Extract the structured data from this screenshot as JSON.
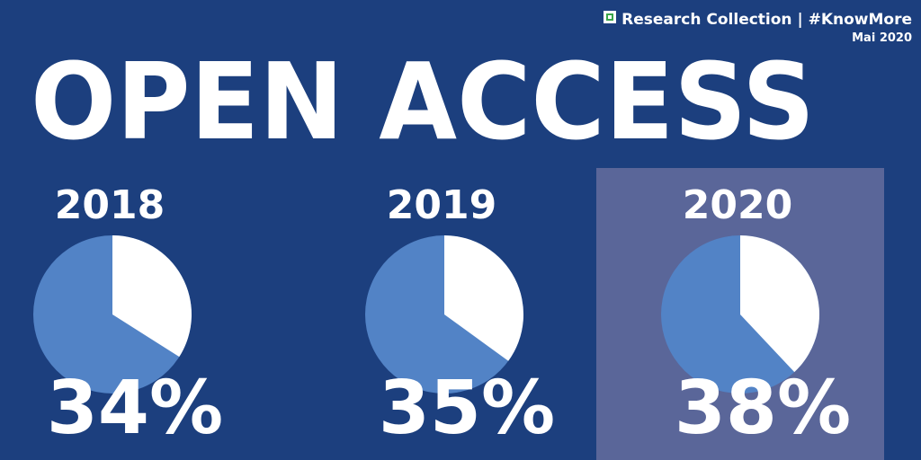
{
  "header": {
    "brand": "Research  Collection | #KnowMore",
    "date": "Mai 2020",
    "title": "OPEN ACCESS"
  },
  "chart_data": [
    {
      "type": "pie",
      "title": "2018",
      "values": [
        34
      ],
      "value_labels": [
        "34%"
      ],
      "color": "#ffffff",
      "background_color": "#5283c6",
      "highlight": false
    },
    {
      "type": "pie",
      "title": "2019",
      "values": [
        35
      ],
      "value_labels": [
        "35%"
      ],
      "color": "#ffffff",
      "background_color": "#5283c6",
      "highlight": false
    },
    {
      "type": "pie",
      "title": "2020",
      "values": [
        38
      ],
      "value_labels": [
        "38%"
      ],
      "color": "#ffffff",
      "background_color": "#5283c6",
      "highlight": true
    }
  ]
}
